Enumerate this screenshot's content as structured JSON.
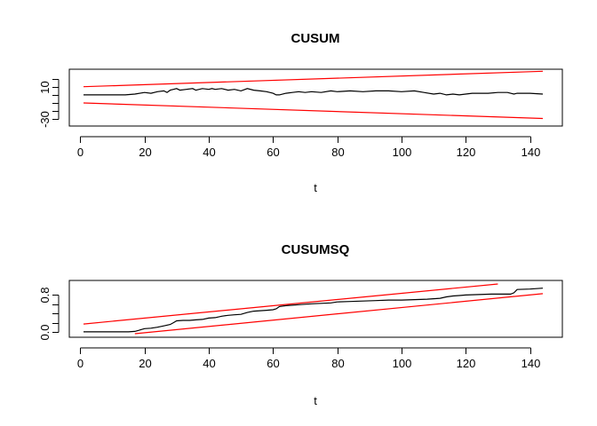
{
  "chart_data": [
    {
      "type": "line",
      "title": "CUSUM",
      "xlabel": "t",
      "ylabel": "",
      "xlim": [
        1,
        144
      ],
      "ylim": [
        -35,
        28
      ],
      "x_ticks": [
        0,
        20,
        40,
        60,
        80,
        100,
        120,
        140
      ],
      "x_tick_labels": [
        "0",
        "20",
        "40",
        "60",
        "80",
        "100",
        "120",
        "140"
      ],
      "y_ticks": [
        -30,
        -20,
        -10,
        0,
        10,
        20
      ],
      "y_tick_labels": [
        "-30",
        "",
        "",
        "",
        "10",
        ""
      ],
      "grid": false,
      "legend": "none",
      "series": [
        {
          "color": "#000000",
          "x": [
            1,
            14,
            17,
            20,
            22,
            24,
            26,
            27,
            28,
            29,
            30,
            31,
            33,
            35,
            36,
            37,
            38,
            40,
            41,
            42,
            44,
            46,
            48,
            50,
            52,
            54,
            56,
            58,
            60,
            61,
            62,
            64,
            66,
            68,
            70,
            72,
            75,
            78,
            80,
            84,
            88,
            92,
            96,
            100,
            104,
            107,
            110,
            112,
            114,
            116,
            118,
            120,
            122,
            124,
            127,
            130,
            133,
            135,
            136,
            140,
            144
          ],
          "y": [
            0,
            0,
            1,
            3,
            2,
            4,
            5,
            3,
            6,
            7,
            8,
            6,
            7,
            8,
            6,
            7,
            8,
            7,
            8,
            7,
            8,
            6,
            7,
            5,
            8,
            6,
            5,
            4,
            2,
            0,
            0,
            2,
            3,
            4,
            3,
            4,
            3,
            5,
            4,
            5,
            4,
            5,
            5,
            4,
            5,
            3,
            1,
            2,
            0,
            1,
            0,
            1,
            2,
            2,
            2,
            3,
            3,
            1,
            2,
            2,
            1
          ]
        },
        {
          "color": "#ff0000",
          "x": [
            1,
            144
          ],
          "y": [
            10.3,
            29.9
          ]
        },
        {
          "color": "#ff0000",
          "x": [
            1,
            144
          ],
          "y": [
            -10.3,
            -29.9
          ]
        }
      ]
    },
    {
      "type": "line",
      "title": "CUSUMSQ",
      "xlabel": "t",
      "ylabel": "",
      "xlim": [
        1,
        144
      ],
      "ylim": [
        -0.04,
        1.04
      ],
      "x_ticks": [
        0,
        20,
        40,
        60,
        80,
        100,
        120,
        140
      ],
      "x_tick_labels": [
        "0",
        "20",
        "40",
        "60",
        "80",
        "100",
        "120",
        "140"
      ],
      "y_ticks": [
        0.0,
        0.2,
        0.4,
        0.6,
        0.8
      ],
      "y_tick_labels": [
        "0.0",
        "",
        "",
        "",
        "0.8"
      ],
      "grid": false,
      "legend": "none",
      "series": [
        {
          "color": "#000000",
          "x": [
            1,
            15,
            17,
            18,
            19,
            20,
            22,
            24,
            26,
            28,
            29,
            30,
            32,
            34,
            36,
            38,
            40,
            42,
            44,
            46,
            48,
            50,
            52,
            54,
            56,
            58,
            60,
            61,
            62,
            64,
            66,
            68,
            70,
            72,
            75,
            78,
            80,
            84,
            88,
            92,
            96,
            100,
            104,
            108,
            110,
            112,
            114,
            116,
            118,
            120,
            124,
            128,
            132,
            134,
            135,
            136,
            140,
            144
          ],
          "y": [
            0.0,
            0.0,
            0.01,
            0.03,
            0.05,
            0.07,
            0.08,
            0.1,
            0.13,
            0.16,
            0.2,
            0.24,
            0.25,
            0.25,
            0.26,
            0.27,
            0.3,
            0.31,
            0.34,
            0.36,
            0.37,
            0.38,
            0.42,
            0.45,
            0.46,
            0.47,
            0.48,
            0.5,
            0.55,
            0.57,
            0.58,
            0.59,
            0.6,
            0.61,
            0.62,
            0.63,
            0.65,
            0.66,
            0.67,
            0.68,
            0.69,
            0.69,
            0.7,
            0.71,
            0.72,
            0.73,
            0.76,
            0.78,
            0.79,
            0.8,
            0.81,
            0.82,
            0.82,
            0.82,
            0.85,
            0.92,
            0.93,
            0.95
          ]
        },
        {
          "color": "#ff0000",
          "x": [
            1,
            130
          ],
          "y": [
            0.17,
            1.04
          ]
        },
        {
          "color": "#ff0000",
          "x": [
            17,
            144
          ],
          "y": [
            -0.04,
            0.83
          ]
        }
      ]
    }
  ]
}
